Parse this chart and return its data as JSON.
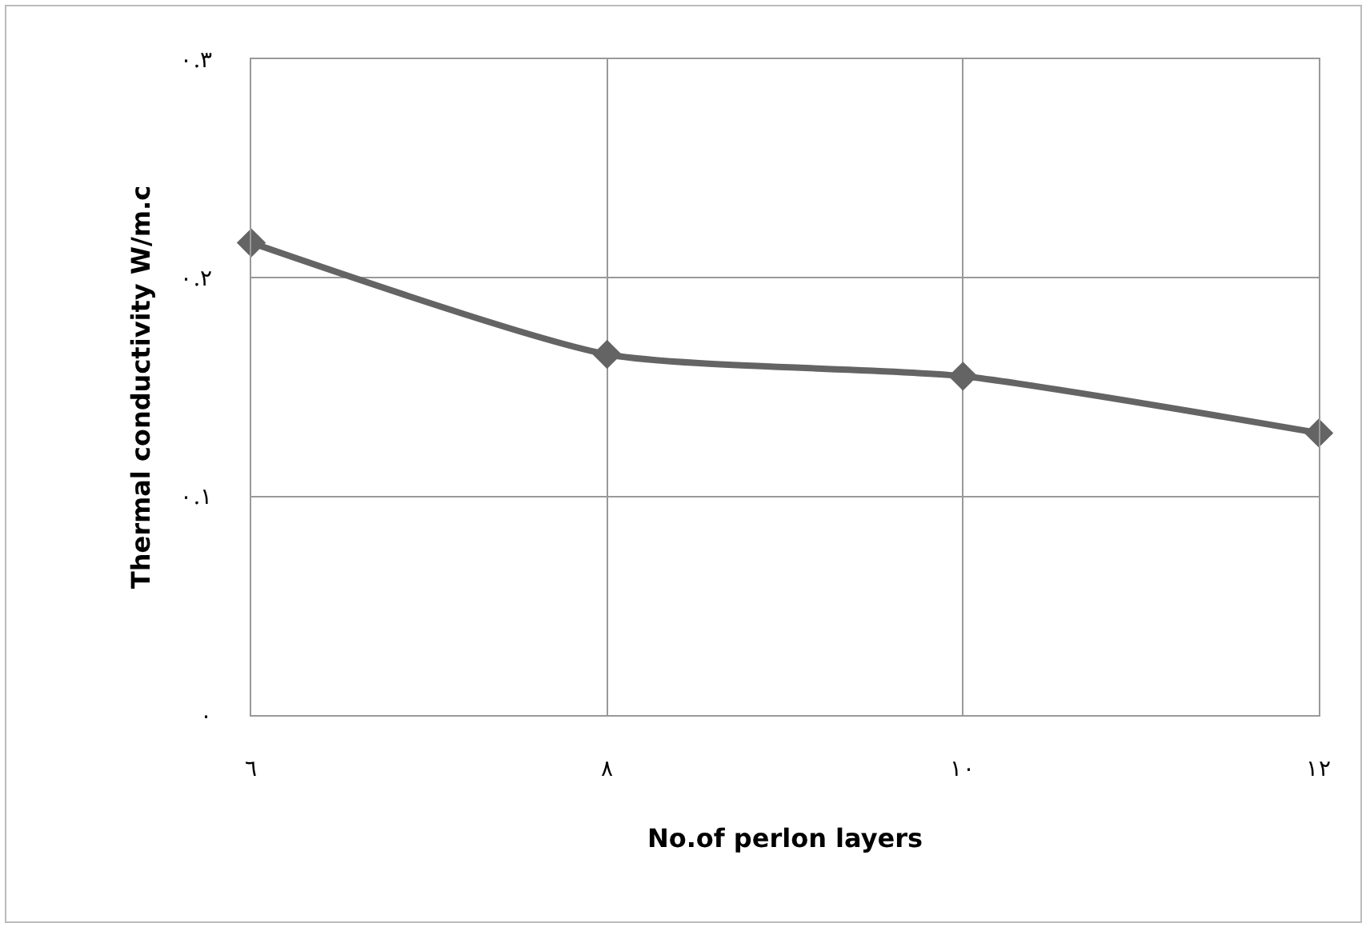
{
  "chart_data": {
    "type": "line",
    "xlabel": "No.of perlon layers",
    "ylabel": "Thermal conductivity W/m.c",
    "x": [
      6,
      8,
      10,
      12
    ],
    "series": [
      {
        "color": "#646464",
        "values": [
          0.216,
          0.165,
          0.155,
          0.129
        ]
      }
    ],
    "xlim": [
      6,
      12
    ],
    "xticks": [
      {
        "value": 6,
        "label": "٦"
      },
      {
        "value": 8,
        "label": "٨"
      },
      {
        "value": 10,
        "label": "١٠"
      },
      {
        "value": 12,
        "label": "١٢"
      }
    ],
    "ylim": [
      0,
      0.3
    ],
    "yticks": [
      {
        "value": 0,
        "label": "٠"
      },
      {
        "value": 0.1,
        "label": "٠.١"
      },
      {
        "value": 0.2,
        "label": "٠.٢"
      },
      {
        "value": 0.3,
        "label": "٠.٣"
      }
    ],
    "grid": true,
    "marker": "diamond",
    "line_style": "solid"
  }
}
